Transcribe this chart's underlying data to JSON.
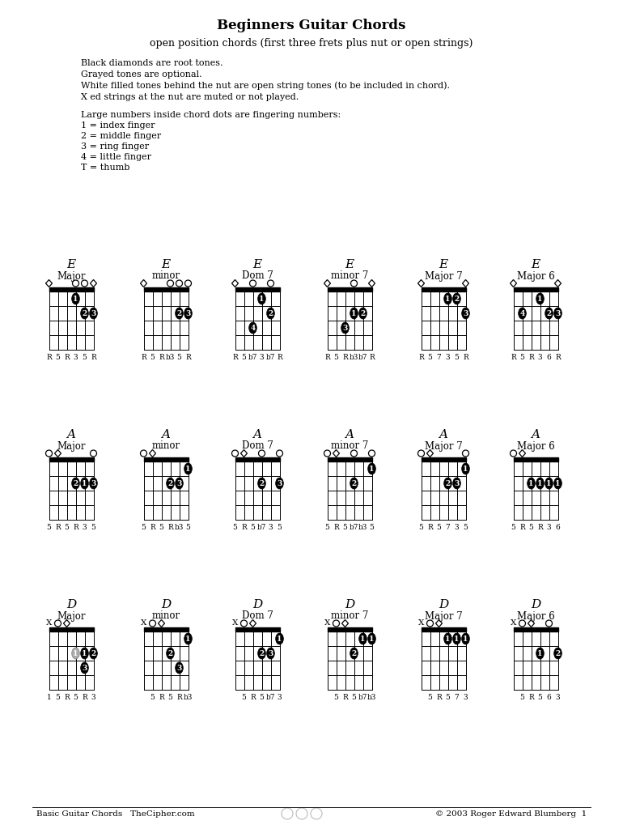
{
  "title": "Beginners Guitar Chords",
  "subtitle": "open position chords (first three frets plus nut or open strings)",
  "legend_lines": [
    "Black diamonds are root tones.",
    "Grayed tones are optional.",
    "White filled tones behind the nut are open string tones (to be included in chord).",
    "X ed strings at the nut are muted or not played."
  ],
  "legend_lines2": [
    "Large numbers inside chord dots are fingering numbers:",
    "1 = index finger",
    "2 = middle finger",
    "3 = ring finger",
    "4 = little finger",
    "T = thumb"
  ],
  "footer_left": "Basic Guitar Chords   TheCipher.com",
  "footer_right": "© 2003 Roger Edward Blumberg  1",
  "row_roots": [
    "E",
    "A",
    "D"
  ],
  "chord_names": [
    "Major",
    "minor",
    "Dom 7",
    "minor 7",
    "Major 7",
    "Major 6"
  ],
  "rows": [
    {
      "root": "E",
      "chords": [
        {
          "name": "Major",
          "open_strings": [
            "diamond",
            "none",
            "none",
            "circle",
            "circle",
            "diamond"
          ],
          "dots": [
            {
              "fret": 1,
              "string": 3,
              "finger": "1"
            },
            {
              "fret": 2,
              "string": 4,
              "finger": "2"
            },
            {
              "fret": 2,
              "string": 5,
              "finger": "3"
            }
          ],
          "note_labels": [
            "R",
            "5",
            "R",
            "3",
            "5",
            "R"
          ]
        },
        {
          "name": "minor",
          "open_strings": [
            "diamond",
            "none",
            "none",
            "circle",
            "circle",
            "circle"
          ],
          "dots": [
            {
              "fret": 2,
              "string": 4,
              "finger": "2"
            },
            {
              "fret": 2,
              "string": 5,
              "finger": "3"
            }
          ],
          "note_labels": [
            "R",
            "5",
            "R",
            "b3",
            "5",
            "R"
          ]
        },
        {
          "name": "Dom 7",
          "open_strings": [
            "diamond",
            "none",
            "circle",
            "none",
            "circle",
            "none"
          ],
          "dots": [
            {
              "fret": 1,
              "string": 3,
              "finger": "1"
            },
            {
              "fret": 2,
              "string": 4,
              "finger": "2"
            },
            {
              "fret": 3,
              "string": 2,
              "finger": "4"
            }
          ],
          "note_labels": [
            "R",
            "5",
            "b7",
            "3",
            "b7",
            "R"
          ]
        },
        {
          "name": "minor 7",
          "open_strings": [
            "diamond",
            "none",
            "none",
            "circle",
            "none",
            "diamond"
          ],
          "dots": [
            {
              "fret": 2,
              "string": 3,
              "finger": "1"
            },
            {
              "fret": 2,
              "string": 4,
              "finger": "2"
            },
            {
              "fret": 3,
              "string": 2,
              "finger": "3"
            }
          ],
          "note_labels": [
            "R",
            "5",
            "R",
            "b3",
            "b7",
            "R"
          ]
        },
        {
          "name": "Major 7",
          "open_strings": [
            "diamond",
            "none",
            "none",
            "none",
            "none",
            "diamond"
          ],
          "dots": [
            {
              "fret": 1,
              "string": 3,
              "finger": "1"
            },
            {
              "fret": 1,
              "string": 4,
              "finger": "2"
            },
            {
              "fret": 2,
              "string": 5,
              "finger": "3"
            }
          ],
          "note_labels": [
            "R",
            "5",
            "7",
            "3",
            "5",
            "R"
          ]
        },
        {
          "name": "Major 6",
          "open_strings": [
            "diamond",
            "none",
            "none",
            "none",
            "none",
            "diamond"
          ],
          "dots": [
            {
              "fret": 1,
              "string": 3,
              "finger": "1"
            },
            {
              "fret": 2,
              "string": 4,
              "finger": "2"
            },
            {
              "fret": 2,
              "string": 5,
              "finger": "3"
            },
            {
              "fret": 2,
              "string": 1,
              "finger": "4"
            }
          ],
          "note_labels": [
            "R",
            "5",
            "R",
            "3",
            "6",
            "R"
          ]
        }
      ]
    },
    {
      "root": "A",
      "chords": [
        {
          "name": "Major",
          "open_strings": [
            "circle",
            "diamond",
            "none",
            "none",
            "none",
            "circle"
          ],
          "dots": [
            {
              "fret": 2,
              "string": 3,
              "finger": "2"
            },
            {
              "fret": 2,
              "string": 4,
              "finger": "1"
            },
            {
              "fret": 2,
              "string": 5,
              "finger": "3"
            }
          ],
          "note_labels": [
            "5",
            "R",
            "5",
            "R",
            "3",
            "5"
          ]
        },
        {
          "name": "minor",
          "open_strings": [
            "circle",
            "diamond",
            "none",
            "none",
            "none",
            "none"
          ],
          "dots": [
            {
              "fret": 1,
              "string": 5,
              "finger": "1"
            },
            {
              "fret": 2,
              "string": 3,
              "finger": "2"
            },
            {
              "fret": 2,
              "string": 4,
              "finger": "3"
            }
          ],
          "note_labels": [
            "5",
            "R",
            "5",
            "R",
            "b3",
            "5"
          ]
        },
        {
          "name": "Dom 7",
          "open_strings": [
            "circle",
            "diamond",
            "none",
            "circle",
            "none",
            "circle"
          ],
          "dots": [
            {
              "fret": 2,
              "string": 3,
              "finger": "2"
            },
            {
              "fret": 2,
              "string": 5,
              "finger": "3"
            }
          ],
          "note_labels": [
            "5",
            "R",
            "5",
            "b7",
            "3",
            "5"
          ]
        },
        {
          "name": "minor 7",
          "open_strings": [
            "circle",
            "diamond",
            "none",
            "circle",
            "none",
            "circle"
          ],
          "dots": [
            {
              "fret": 1,
              "string": 5,
              "finger": "1"
            },
            {
              "fret": 2,
              "string": 3,
              "finger": "2"
            }
          ],
          "note_labels": [
            "5",
            "R",
            "5",
            "b7",
            "b3",
            "5"
          ]
        },
        {
          "name": "Major 7",
          "open_strings": [
            "circle",
            "diamond",
            "none",
            "none",
            "none",
            "circle"
          ],
          "dots": [
            {
              "fret": 1,
              "string": 5,
              "finger": "1"
            },
            {
              "fret": 2,
              "string": 3,
              "finger": "2"
            },
            {
              "fret": 2,
              "string": 4,
              "finger": "3"
            }
          ],
          "note_labels": [
            "5",
            "R",
            "5",
            "7",
            "3",
            "5"
          ]
        },
        {
          "name": "Major 6",
          "open_strings": [
            "circle",
            "diamond",
            "none",
            "none",
            "none",
            "none"
          ],
          "dots": [
            {
              "fret": 2,
              "string": 2,
              "finger": "1"
            },
            {
              "fret": 2,
              "string": 3,
              "finger": "1"
            },
            {
              "fret": 2,
              "string": 4,
              "finger": "1"
            },
            {
              "fret": 2,
              "string": 5,
              "finger": "1"
            }
          ],
          "note_labels": [
            "5",
            "R",
            "5",
            "R",
            "3",
            "6"
          ]
        }
      ]
    },
    {
      "root": "D",
      "chords": [
        {
          "name": "Major",
          "open_strings": [
            "x",
            "circle",
            "diamond",
            "none",
            "none",
            "none"
          ],
          "dots": [
            {
              "fret": 2,
              "string": 3,
              "finger": "1",
              "gray": true
            },
            {
              "fret": 2,
              "string": 4,
              "finger": "1"
            },
            {
              "fret": 2,
              "string": 5,
              "finger": "2"
            },
            {
              "fret": 3,
              "string": 4,
              "finger": "3"
            }
          ],
          "note_labels": [
            "1",
            "5",
            "R",
            "5",
            "R",
            "3"
          ]
        },
        {
          "name": "minor",
          "open_strings": [
            "x",
            "circle",
            "diamond",
            "none",
            "none",
            "none"
          ],
          "dots": [
            {
              "fret": 1,
              "string": 5,
              "finger": "1"
            },
            {
              "fret": 2,
              "string": 3,
              "finger": "2"
            },
            {
              "fret": 3,
              "string": 4,
              "finger": "3"
            }
          ],
          "note_labels": [
            "",
            "5",
            "R",
            "5",
            "R",
            "b3"
          ]
        },
        {
          "name": "Dom 7",
          "open_strings": [
            "x",
            "circle",
            "diamond",
            "none",
            "none",
            "none"
          ],
          "dots": [
            {
              "fret": 1,
              "string": 5,
              "finger": "1"
            },
            {
              "fret": 2,
              "string": 3,
              "finger": "2"
            },
            {
              "fret": 2,
              "string": 4,
              "finger": "3"
            }
          ],
          "note_labels": [
            "",
            "5",
            "R",
            "5",
            "b7",
            "3"
          ]
        },
        {
          "name": "minor 7",
          "open_strings": [
            "x",
            "circle",
            "diamond",
            "none",
            "none",
            "none"
          ],
          "dots": [
            {
              "fret": 1,
              "string": 4,
              "finger": "1"
            },
            {
              "fret": 1,
              "string": 5,
              "finger": "1"
            },
            {
              "fret": 2,
              "string": 3,
              "finger": "2"
            }
          ],
          "note_labels": [
            "",
            "5",
            "R",
            "5",
            "b7",
            "b3"
          ]
        },
        {
          "name": "Major 7",
          "open_strings": [
            "x",
            "circle",
            "diamond",
            "none",
            "none",
            "none"
          ],
          "dots": [
            {
              "fret": 1,
              "string": 3,
              "finger": "1"
            },
            {
              "fret": 1,
              "string": 4,
              "finger": "1"
            },
            {
              "fret": 1,
              "string": 5,
              "finger": "1"
            }
          ],
          "note_labels": [
            "",
            "5",
            "R",
            "5",
            "7",
            "3"
          ]
        },
        {
          "name": "Major 6",
          "open_strings": [
            "x",
            "circle",
            "diamond",
            "none",
            "circle",
            "none"
          ],
          "dots": [
            {
              "fret": 2,
              "string": 3,
              "finger": "1"
            },
            {
              "fret": 2,
              "string": 5,
              "finger": "2"
            }
          ],
          "note_labels": [
            "",
            "5",
            "R",
            "5",
            "6",
            "3"
          ]
        }
      ]
    }
  ]
}
